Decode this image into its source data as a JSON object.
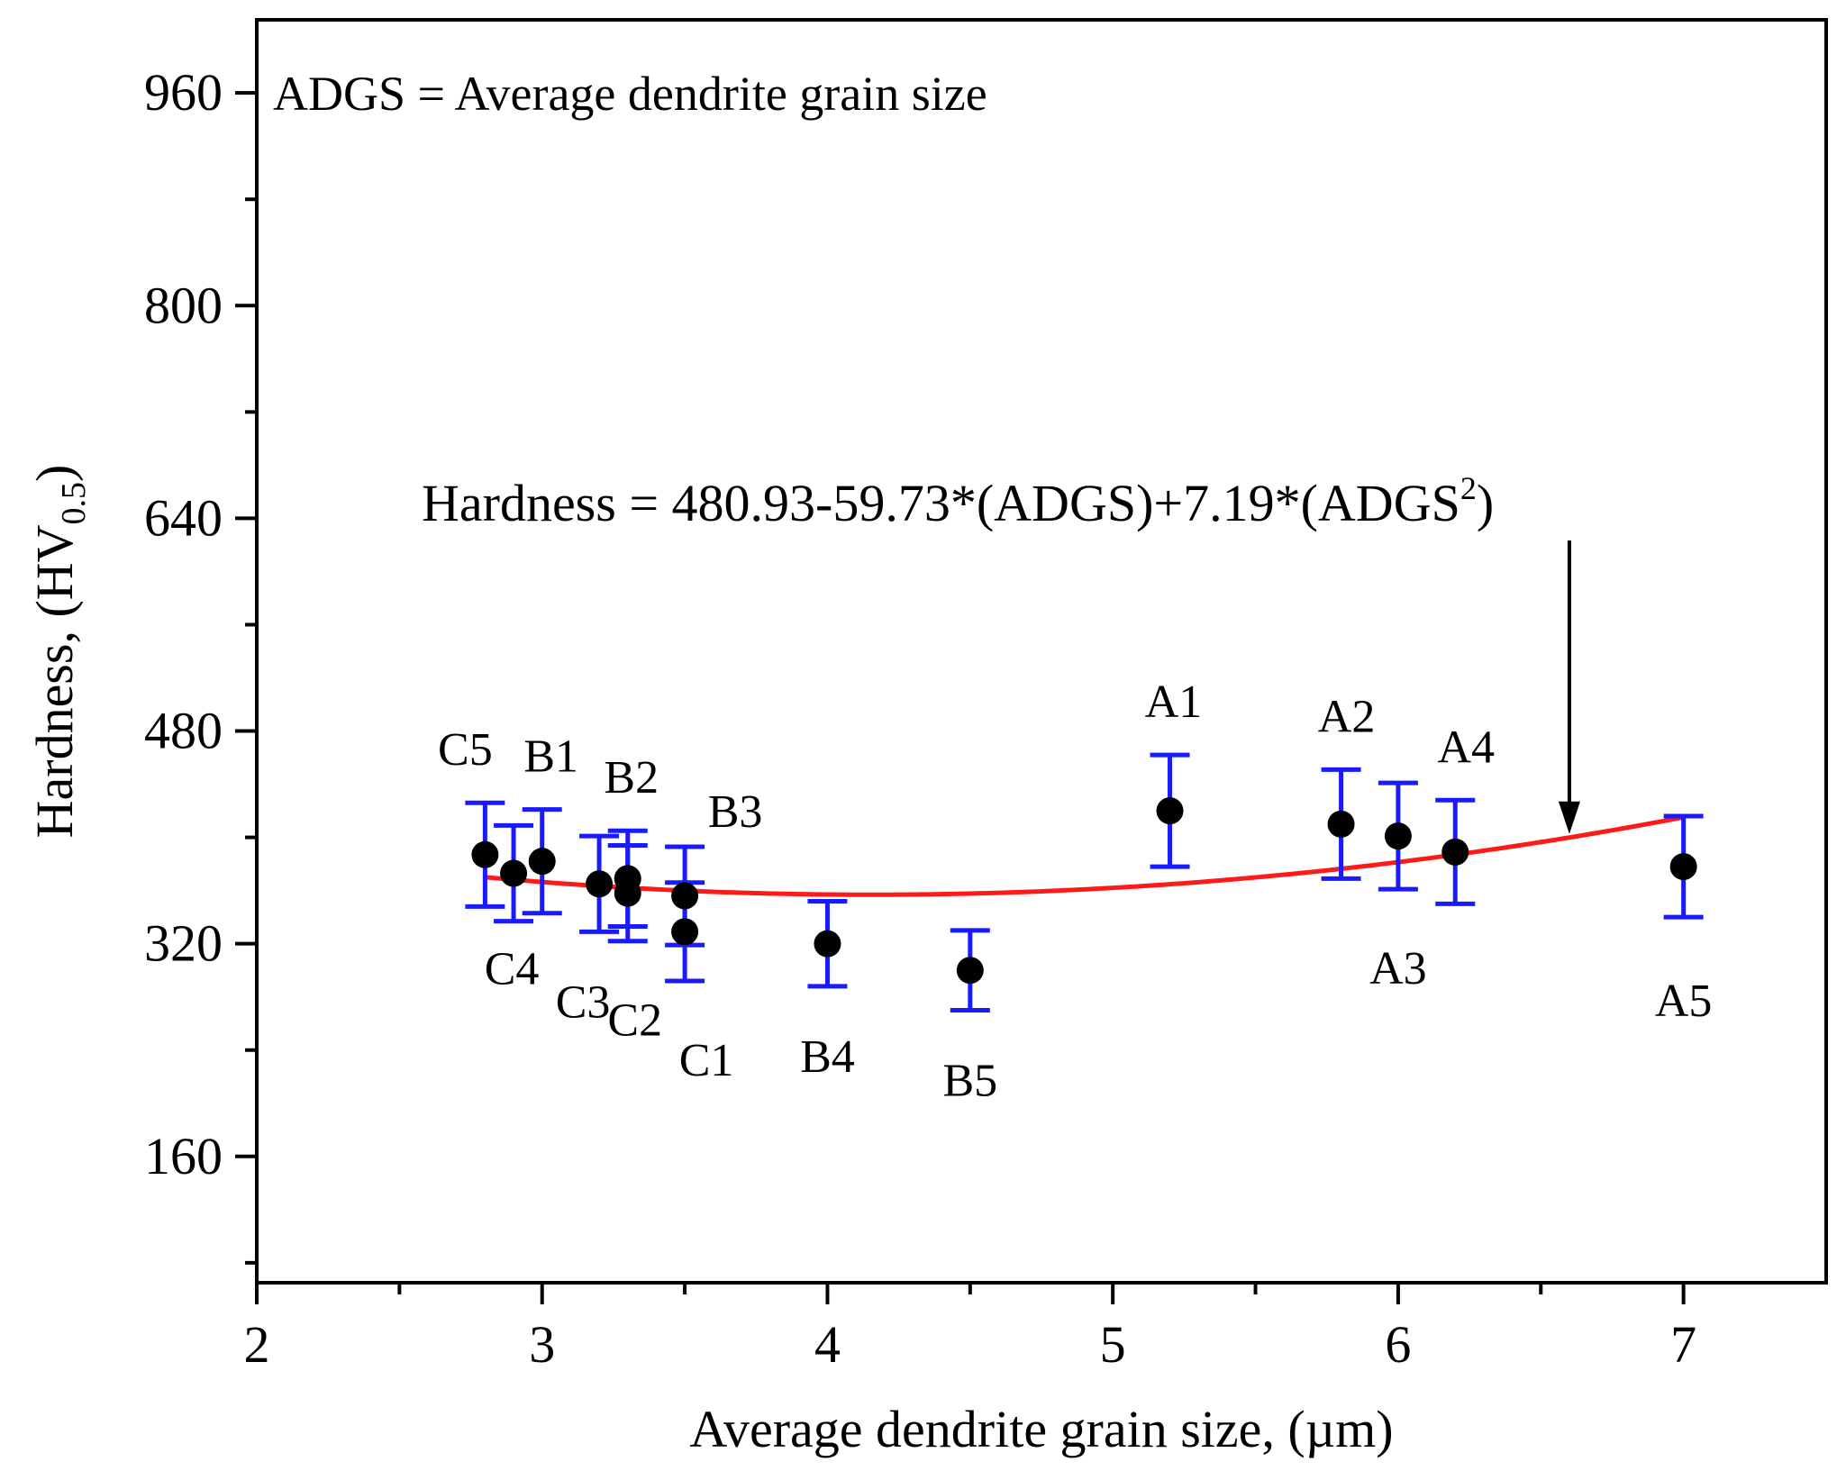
{
  "chart_data": {
    "type": "scatter",
    "title": "",
    "xlabel": "Average dendrite grain size, (µm)",
    "ylabel_main": "Hardness, (HV",
    "ylabel_sub": "0.5",
    "ylabel_close": ")",
    "xlim": [
      2,
      7.5
    ],
    "ylim": [
      65,
      1015
    ],
    "x_ticks": [
      2,
      3,
      4,
      5,
      6,
      7
    ],
    "y_ticks": [
      160,
      320,
      480,
      640,
      800,
      960
    ],
    "x_tick_labels": [
      "2",
      "3",
      "4",
      "5",
      "6",
      "7"
    ],
    "y_tick_labels": [
      "160",
      "320",
      "480",
      "640",
      "800",
      "960"
    ],
    "grid": false,
    "annotation_note": "ADGS = Average dendrite grain size",
    "equation_main": "Hardness = 480.93-59.73*(ADGS)+7.19*(ADGS",
    "equation_sup": "2",
    "equation_close": ")",
    "fit": {
      "name": "Hardness = 480.93-59.73*(ADGS)+7.19*(ADGS^2)",
      "a": 480.93,
      "b": -59.73,
      "c": 7.19,
      "x_range": [
        2.8,
        7.0
      ],
      "color": "#ff1a1a"
    },
    "arrow_target_x": 6.6,
    "marker_color": "#000000",
    "errorbar_color": "#1a1aff",
    "points": [
      {
        "label": "C5",
        "x": 2.8,
        "y": 387,
        "err": 39
      },
      {
        "label": "C4",
        "x": 2.9,
        "y": 373,
        "err": 36
      },
      {
        "label": "B1",
        "x": 3.0,
        "y": 382,
        "err": 39
      },
      {
        "label": "C3",
        "x": 3.2,
        "y": 365,
        "err": 36
      },
      {
        "label": "B2",
        "x": 3.3,
        "y": 369,
        "err": 36
      },
      {
        "label": "C2",
        "x": 3.3,
        "y": 358,
        "err": 36
      },
      {
        "label": "B3",
        "x": 3.5,
        "y": 356,
        "err": 37
      },
      {
        "label": "C1",
        "x": 3.5,
        "y": 329,
        "err": 37
      },
      {
        "label": "B4",
        "x": 4.0,
        "y": 320,
        "err": 32
      },
      {
        "label": "B5",
        "x": 4.5,
        "y": 300,
        "err": 30
      },
      {
        "label": "A1",
        "x": 5.2,
        "y": 420,
        "err": 42
      },
      {
        "label": "A2",
        "x": 5.8,
        "y": 410,
        "err": 41
      },
      {
        "label": "A3",
        "x": 6.0,
        "y": 401,
        "err": 40
      },
      {
        "label": "A4",
        "x": 6.2,
        "y": 389,
        "err": 39
      },
      {
        "label": "A5",
        "x": 7.0,
        "y": 378,
        "err": 38
      }
    ]
  }
}
